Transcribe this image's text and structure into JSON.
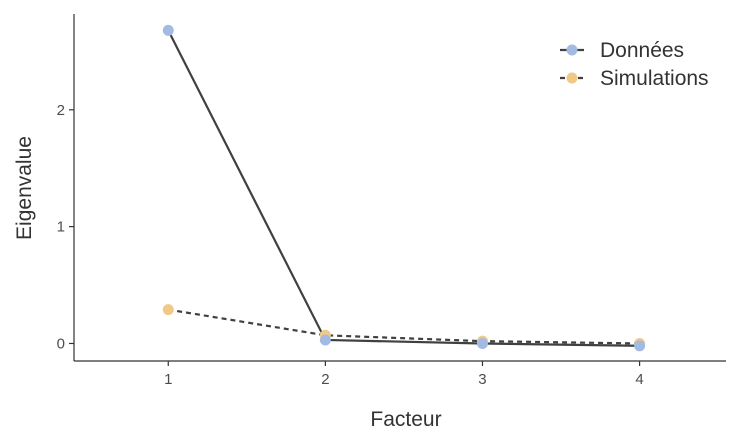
{
  "chart_data": {
    "type": "line",
    "title": "",
    "xlabel": "Facteur",
    "ylabel": "Eigenvalue",
    "x": [
      1,
      2,
      3,
      4
    ],
    "xticks": [
      "1",
      "2",
      "3",
      "4"
    ],
    "yticks": [
      "0",
      "1",
      "2"
    ],
    "xlim": [
      0.4,
      4.55
    ],
    "ylim": [
      -0.15,
      2.82
    ],
    "grid": false,
    "legend_position": "top-right",
    "series": [
      {
        "name": "Données",
        "values": [
          2.68,
          0.03,
          0.0,
          -0.02
        ],
        "color": "#a3bbe3",
        "line_color": "#404040",
        "line_style": "solid"
      },
      {
        "name": "Simulations",
        "values": [
          0.29,
          0.07,
          0.02,
          0.0
        ],
        "color": "#f0c987",
        "line_color": "#404040",
        "line_style": "dashed"
      }
    ]
  }
}
